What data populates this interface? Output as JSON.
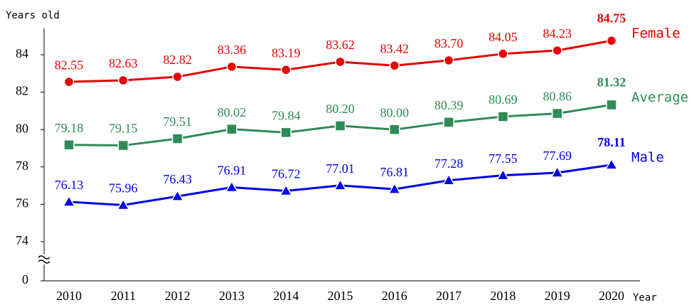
{
  "chart_data": {
    "type": "line",
    "y_axis_label": "Years old",
    "x_axis_label": "Year",
    "categories": [
      "2010",
      "2011",
      "2012",
      "2013",
      "2014",
      "2015",
      "2016",
      "2017",
      "2018",
      "2019",
      "2020"
    ],
    "ylim": [
      0,
      85
    ],
    "yticks": [
      0,
      74,
      76,
      78,
      80,
      82,
      84
    ],
    "y_break": true,
    "series": [
      {
        "name": "Female",
        "color": "#e60000",
        "marker": "circle",
        "values": [
          82.55,
          82.63,
          82.82,
          83.36,
          83.19,
          83.62,
          83.42,
          83.7,
          84.05,
          84.23,
          84.75
        ],
        "value_labels": [
          "82.55",
          "82.63",
          "82.82",
          "83.36",
          "83.19",
          "83.62",
          "83.42",
          "83.70",
          "84.05",
          "84.23",
          "84.75"
        ]
      },
      {
        "name": "Average",
        "color": "#2e8b57",
        "marker": "square",
        "values": [
          79.18,
          79.15,
          79.51,
          80.02,
          79.84,
          80.2,
          80.0,
          80.39,
          80.69,
          80.86,
          81.32
        ],
        "value_labels": [
          "79.18",
          "79.15",
          "79.51",
          "80.02",
          "79.84",
          "80.20",
          "80.00",
          "80.39",
          "80.69",
          "80.86",
          "81.32"
        ]
      },
      {
        "name": "Male",
        "color": "#0000e6",
        "marker": "triangle",
        "values": [
          76.13,
          75.96,
          76.43,
          76.91,
          76.72,
          77.01,
          76.81,
          77.28,
          77.55,
          77.69,
          78.11
        ],
        "value_labels": [
          "76.13",
          "75.96",
          "76.43",
          "76.91",
          "76.72",
          "77.01",
          "76.81",
          "77.28",
          "77.55",
          "77.69",
          "78.11"
        ]
      }
    ]
  }
}
